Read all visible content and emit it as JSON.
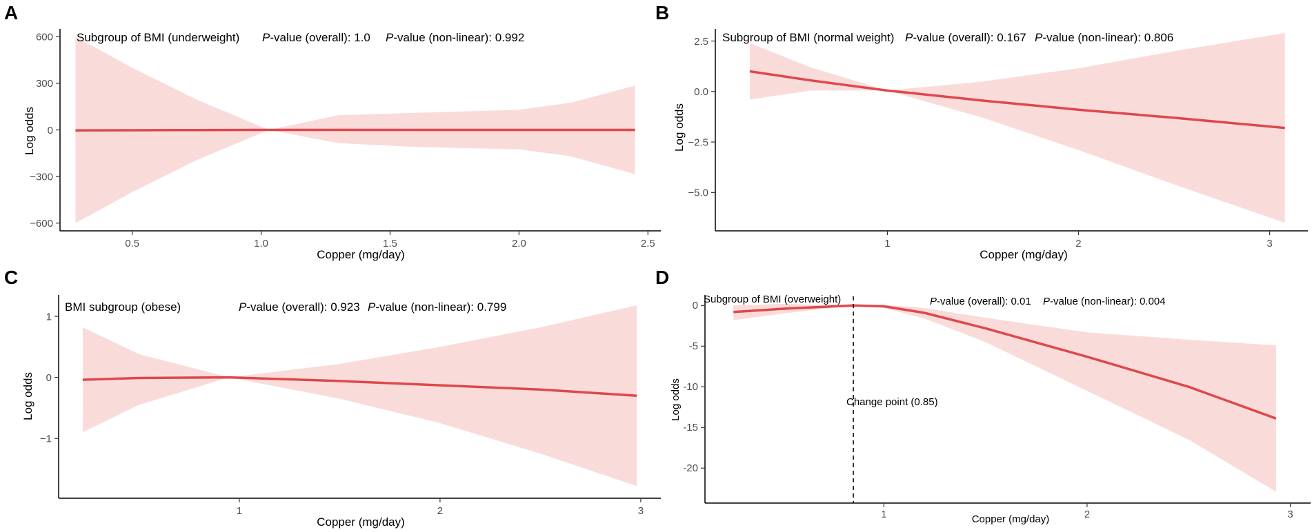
{
  "colors": {
    "line": "#E0474C",
    "band": "#F9DCDA"
  },
  "chart_data": [
    {
      "panel": "A",
      "type": "line",
      "subgroup": "Subgroup of BMI (underweight)",
      "p_overall_label": "P-value (overall): 1.0",
      "p_nonlinear_label": "P-value (non-linear): 0.992",
      "xlabel": "Copper (mg/day)",
      "ylabel": "Log odds",
      "xlim": [
        0.22,
        2.55
      ],
      "ylim": [
        -650,
        650
      ],
      "xticks": [
        0.5,
        1.0,
        1.5,
        2.0,
        2.5
      ],
      "xtick_labels": [
        "0.5",
        "1.0",
        "1.5",
        "2.0",
        "2.5"
      ],
      "yticks": [
        600,
        300,
        0,
        -300,
        -600
      ],
      "ytick_labels": [
        "600",
        "300",
        "0",
        "−300",
        "−600"
      ],
      "x": [
        0.28,
        0.5,
        0.75,
        1.03,
        1.3,
        1.6,
        2.0,
        2.2,
        2.45
      ],
      "y": [
        -3,
        -2,
        -1,
        0,
        0,
        0,
        0,
        0,
        0
      ],
      "lower": [
        -600,
        -400,
        -195,
        0,
        -85,
        -110,
        -125,
        -170,
        -285
      ],
      "upper": [
        600,
        400,
        195,
        0,
        95,
        110,
        130,
        175,
        285
      ]
    },
    {
      "panel": "B",
      "type": "line",
      "subgroup": "Subgroup of BMI (normal weight)",
      "p_overall_label": "P-value (overall): 0.167",
      "p_nonlinear_label": "P-value (non-linear): 0.806",
      "xlabel": "Copper (mg/day)",
      "ylabel": "Log odds",
      "xlim": [
        0.1,
        3.2
      ],
      "ylim": [
        -6.9,
        3.1
      ],
      "xticks": [
        1,
        2,
        3
      ],
      "xtick_labels": [
        "1",
        "2",
        "3"
      ],
      "yticks": [
        2.5,
        0.0,
        -2.5,
        -5.0
      ],
      "ytick_labels": [
        "2.5",
        "0.0",
        "−2.5",
        "−5.0"
      ],
      "x": [
        0.28,
        0.6,
        1.0,
        1.5,
        2.0,
        2.5,
        3.08
      ],
      "y": [
        1.0,
        0.55,
        0.05,
        -0.45,
        -0.9,
        -1.3,
        -1.8
      ],
      "lower": [
        -0.4,
        0.05,
        0.05,
        -1.3,
        -2.9,
        -4.6,
        -6.5
      ],
      "upper": [
        2.4,
        1.2,
        0.05,
        0.5,
        1.15,
        2.0,
        2.9
      ]
    },
    {
      "panel": "C",
      "type": "line",
      "subgroup": "BMI subgroup (obese)",
      "p_overall_label": "P-value (overall): 0.923",
      "p_nonlinear_label": "P-value (non-linear): 0.799",
      "xlabel": "Copper (mg/day)",
      "ylabel": "Log odds",
      "xlim": [
        0.1,
        3.1
      ],
      "ylim": [
        -1.98,
        1.35
      ],
      "xticks": [
        1,
        2,
        3
      ],
      "xtick_labels": [
        "1",
        "2",
        "3"
      ],
      "yticks": [
        1,
        0,
        -1
      ],
      "ytick_labels": [
        "1",
        "0",
        "−1"
      ],
      "x": [
        0.22,
        0.5,
        0.95,
        1.5,
        2.0,
        2.5,
        2.98
      ],
      "y": [
        -0.04,
        -0.01,
        0.0,
        -0.06,
        -0.13,
        -0.2,
        -0.3
      ],
      "lower": [
        -0.9,
        -0.45,
        0.0,
        -0.35,
        -0.75,
        -1.25,
        -1.78
      ],
      "upper": [
        0.82,
        0.38,
        0.0,
        0.22,
        0.5,
        0.82,
        1.18
      ]
    },
    {
      "panel": "D",
      "type": "line",
      "subgroup": "Subgroup of BMI (overweight)",
      "p_overall_label": "P-value (overall): 0.01",
      "p_nonlinear_label": "P-value (non-linear): 0.004",
      "change_point_label": "Change point (0.85)",
      "change_point": 0.85,
      "xlabel": "Copper (mg/day)",
      "ylabel": "Log odds",
      "xlim": [
        0.12,
        3.1
      ],
      "ylim": [
        -24.3,
        1.3
      ],
      "xticks": [
        1,
        2,
        3
      ],
      "xtick_labels": [
        "1",
        "2",
        "3"
      ],
      "yticks": [
        0,
        -5,
        -10,
        -15,
        -20
      ],
      "ytick_labels": [
        "0",
        "-5",
        "-10",
        "-15",
        "-20"
      ],
      "x": [
        0.26,
        0.5,
        0.85,
        1.0,
        1.2,
        1.5,
        2.0,
        2.5,
        2.93
      ],
      "y": [
        -0.8,
        -0.4,
        0.0,
        -0.1,
        -0.9,
        -2.8,
        -6.3,
        -10.0,
        -13.9
      ],
      "lower": [
        -1.8,
        -1.0,
        0.0,
        -0.3,
        -1.6,
        -4.5,
        -10.5,
        -16.5,
        -22.9
      ],
      "upper": [
        0.0,
        0.2,
        0.0,
        0.1,
        -0.3,
        -1.5,
        -3.3,
        -4.2,
        -4.9
      ]
    }
  ]
}
